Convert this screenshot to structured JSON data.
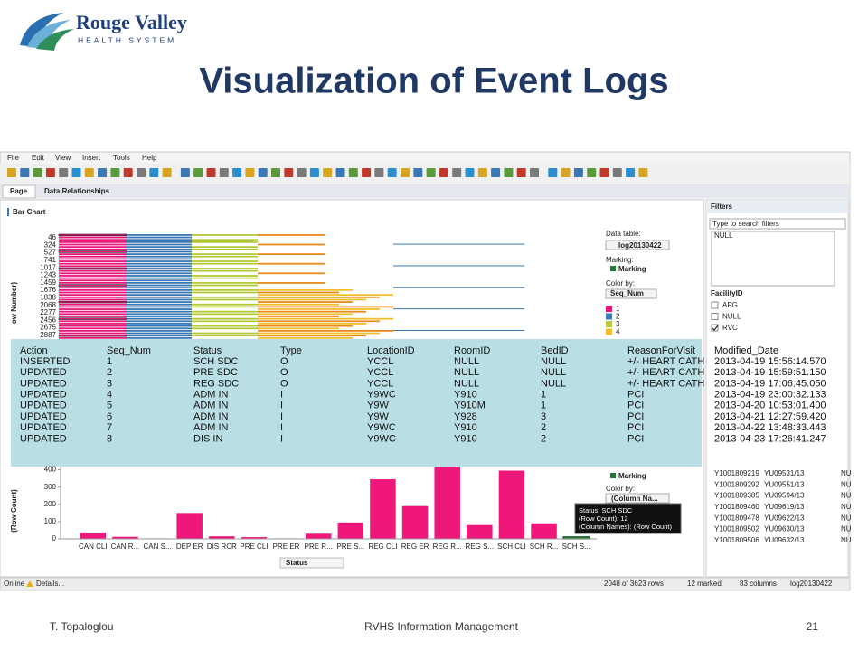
{
  "logo": {
    "name": "Rouge Valley",
    "tagline": "HEALTH SYSTEM"
  },
  "title": "Visualization of Event Logs",
  "app": {
    "menu": [
      "File",
      "Edit",
      "View",
      "Insert",
      "Tools",
      "Help"
    ],
    "tabs": [
      "Page",
      "Data Relationships"
    ],
    "panel_title": "Bar Chart",
    "top_chart": {
      "row_labels": [
        46,
        324,
        527,
        741,
        1017,
        1243,
        1459,
        1676,
        1838,
        2068,
        2277,
        2456,
        2675,
        2887
      ],
      "y_label": "ow Number)",
      "data_table_label": "Data table:",
      "data_table": "log20130422",
      "marking_label": "Marking:",
      "marking": "Marking",
      "color_by_label": "Color by:",
      "color_by": "Seq_Num",
      "legend": [
        "1",
        "2",
        "3",
        "4"
      ],
      "legend_colors": [
        "#e8177a",
        "#3a78b5",
        "#b6c93a",
        "#f2bf2a"
      ]
    },
    "event_table": {
      "columns": [
        "Action",
        "Seq_Num",
        "Status",
        "Type",
        "LocationID",
        "RoomID",
        "BedID",
        "ReasonForVisit",
        "Modified_Date"
      ],
      "rows": [
        [
          "INSERTED",
          "1",
          "SCH SDC",
          "O",
          "YCCL",
          "NULL",
          "NULL",
          "+/- HEART CATH",
          "2013-04-19 15:56:14.570"
        ],
        [
          "UPDATED",
          "2",
          "PRE SDC",
          "O",
          "YCCL",
          "NULL",
          "NULL",
          "+/- HEART CATH",
          "2013-04-19 15:59:51.150"
        ],
        [
          "UPDATED",
          "3",
          "REG SDC",
          "O",
          "YCCL",
          "NULL",
          "NULL",
          "+/- HEART CATH",
          "2013-04-19 17:06:45.050"
        ],
        [
          "UPDATED",
          "4",
          "ADM IN",
          "I",
          "Y9WC",
          "Y910",
          "1",
          "PCI",
          "2013-04-19 23:00:32.133"
        ],
        [
          "UPDATED",
          "5",
          "ADM IN",
          "I",
          "Y9W",
          "Y910M",
          "1",
          "PCI",
          "2013-04-20 10:53:01.400"
        ],
        [
          "UPDATED",
          "6",
          "ADM IN",
          "I",
          "Y9W",
          "Y928",
          "3",
          "PCI",
          "2013-04-21 12:27:59.420"
        ],
        [
          "UPDATED",
          "7",
          "ADM IN",
          "I",
          "Y9WC",
          "Y910",
          "2",
          "PCI",
          "2013-04-22 13:48:33.443"
        ],
        [
          "UPDATED",
          "8",
          "DIS IN",
          "I",
          "Y9WC",
          "Y910",
          "2",
          "PCI",
          "2013-04-23 17:26:41.247"
        ]
      ]
    },
    "bottom_chart": {
      "type": "bar",
      "y_label": "(Row Count)",
      "x_label": "Status",
      "categories": [
        "CAN CLI",
        "CAN R...",
        "CAN S...",
        "DEP ER",
        "DIS RCR",
        "PRE CLI",
        "PRE ER",
        "PRE R...",
        "PRE S...",
        "REG CLI",
        "REG ER",
        "REG R...",
        "REG S...",
        "SCH CLI",
        "SCH R...",
        "SCH S..."
      ],
      "values": [
        37,
        12,
        3,
        150,
        15,
        10,
        3,
        30,
        95,
        345,
        190,
        425,
        80,
        395,
        90,
        12
      ],
      "ylim": [
        0,
        450
      ],
      "yticks": [
        0,
        100,
        200,
        300,
        400
      ],
      "color": "#f0177a",
      "marking": "Marking",
      "color_by_label": "Color by:",
      "color_by": "(Column Na...",
      "tooltip": [
        "Status: SCH SDC",
        "(Row Count): 12",
        "(Column Names): (Row Count)"
      ]
    },
    "filters": {
      "title": "Filters",
      "search_placeholder": "Type to search filters",
      "top_list": [
        "NULL"
      ],
      "facility_label": "FacilityID",
      "facility_options": [
        "APG",
        "NULL",
        "RVC"
      ],
      "facility_checked": [
        false,
        false,
        true
      ],
      "records": [
        [
          "Y1001809219",
          "YU09531/13",
          "NU"
        ],
        [
          "Y1001809292",
          "YU09551/13",
          "NU"
        ],
        [
          "Y1001809385",
          "YU09594/13",
          "NU"
        ],
        [
          "Y1001809460",
          "YU09619/13",
          "NU"
        ],
        [
          "Y1001809478",
          "YU09622/13",
          "NU"
        ],
        [
          "Y1001809502",
          "YU09630/13",
          "NU"
        ],
        [
          "Y1001809506",
          "YU09632/13",
          "NU"
        ]
      ]
    },
    "status_bar": {
      "mode": "Online",
      "details": "Details...",
      "rows": "2048 of 3623 rows",
      "marked": "12 marked",
      "columns": "83 columns",
      "table": "log20130422"
    }
  },
  "footer": {
    "author": "T. Topaloglou",
    "department": "RVHS Information Management",
    "page": 21
  }
}
